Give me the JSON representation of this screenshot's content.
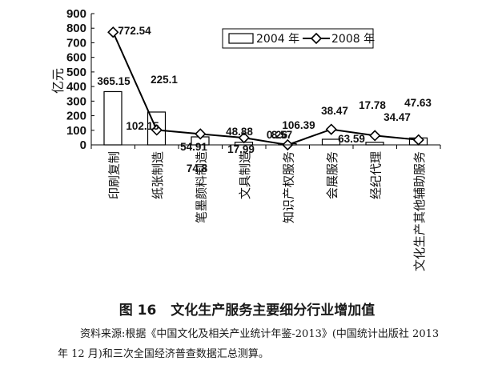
{
  "chart_data": {
    "type": "bar",
    "ylabel": "亿元",
    "ylim": [
      0,
      900
    ],
    "yticks": [
      0,
      100,
      200,
      300,
      400,
      500,
      600,
      700,
      800,
      900
    ],
    "categories": [
      "印刷复制",
      "纸张制造",
      "笔墨颜料制造",
      "文具制造",
      "知识产权服务",
      "会展服务",
      "经纪代理",
      "文化生产其他辅助服务"
    ],
    "series": [
      {
        "name": "2004 年",
        "kind": "bar",
        "values": [
          365.15,
          225.1,
          54.91,
          17.99,
          8.57,
          38.47,
          17.78,
          47.63
        ]
      },
      {
        "name": "2008 年",
        "kind": "line-diamond",
        "values": [
          772.54,
          102.15,
          74.8,
          48.88,
          0.26,
          106.39,
          63.59,
          34.47
        ]
      }
    ],
    "legend_position": "top-right",
    "grid": false
  },
  "caption": {
    "number": "图 16",
    "title": "文化生产服务主要细分行业增加值"
  },
  "source_note": "资料来源:根据《中国文化及相关产业统计年鉴-2013》(中国统计出版社 2013 年 12 月)和三次全国经济普查数据汇总测算。",
  "colors": {
    "axis": "#000000",
    "bar_fill": "#ffffff",
    "line": "#000000"
  }
}
